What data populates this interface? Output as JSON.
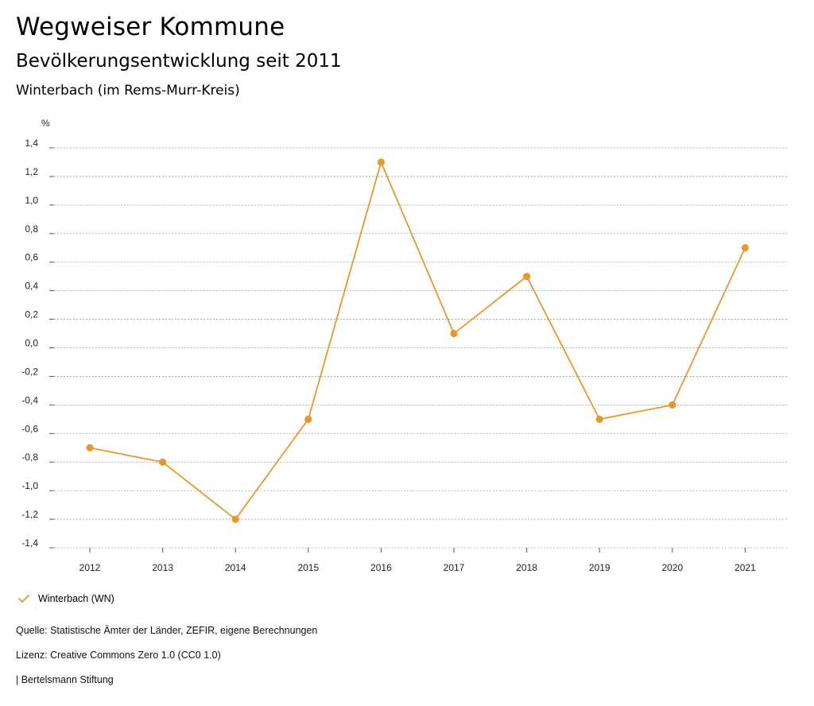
{
  "header": {
    "title": "Wegweiser Kommune",
    "subtitle": "Bevölkerungsentwicklung seit 2011",
    "region": "Winterbach (im Rems-Murr-Kreis)"
  },
  "chart_data": {
    "type": "line",
    "unit": "%",
    "x": [
      "2012",
      "2013",
      "2014",
      "2015",
      "2016",
      "2017",
      "2018",
      "2019",
      "2020",
      "2021"
    ],
    "series": [
      {
        "name": "Winterbach (WN)",
        "color": "#E8962E",
        "values": [
          -0.7,
          -0.8,
          -1.2,
          -0.5,
          1.3,
          0.1,
          0.5,
          -0.5,
          -0.4,
          0.7
        ]
      }
    ],
    "ylim": [
      -1.4,
      1.4
    ],
    "yticks": [
      "1,4",
      "1,2",
      "1,0",
      "0,8",
      "0,6",
      "0,4",
      "0,2",
      "0,0",
      "-0,2",
      "-0,4",
      "-0,6",
      "-0,8",
      "-1,0",
      "-1,2",
      "-1,4"
    ],
    "grid": true,
    "legend_position": "bottom-left"
  },
  "footer": {
    "source": "Quelle: Statistische Ämter der Länder, ZEFIR, eigene Berechnungen",
    "license": "Lizenz: Creative Commons Zero 1.0 (CC0 1.0)",
    "publisher": "| Bertelsmann Stiftung"
  }
}
